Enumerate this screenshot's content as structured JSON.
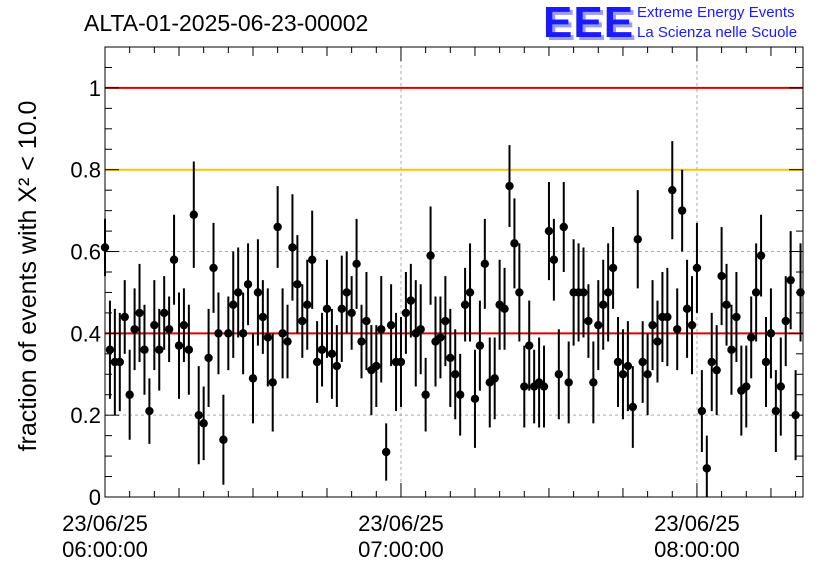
{
  "title": "ALTA-01-2025-06-23-00002",
  "logo": {
    "mark": "EEE",
    "line1": "Extreme Energy Events",
    "line2": "La Scienza nelle Scuole"
  },
  "chart_data": {
    "type": "scatter",
    "title": "ALTA-01-2025-06-23-00002",
    "ylabel": "fraction of events with X² < 10.0",
    "xlabel": "",
    "ylim": [
      0,
      1.1
    ],
    "xlim": [
      "23/06/25 06:00:00",
      "23/06/25 08:21:30"
    ],
    "grid": true,
    "y_ticks": [
      "0",
      "0.2",
      "0.4",
      "0.6",
      "0.8",
      "1"
    ],
    "x_ticks": [
      {
        "value": 0,
        "line1": "23/06/25",
        "line2": "06:00:00"
      },
      {
        "value": 60,
        "line1": "23/06/25",
        "line2": "07:00:00"
      },
      {
        "value": 120,
        "line1": "23/06/25",
        "line2": "08:00:00"
      }
    ],
    "reference_lines": [
      {
        "y": 1.0,
        "color": "#e00000"
      },
      {
        "y": 0.8,
        "color": "#ffc000"
      },
      {
        "y": 0.4,
        "color": "#e00000"
      }
    ],
    "series": [
      {
        "x": [
          0,
          1.0,
          2.0,
          3.0,
          4.0,
          5.0,
          6.0,
          7.0,
          8.0,
          9.0,
          10.0,
          11.0,
          12.0,
          13.0,
          14.0,
          15.0,
          16.0,
          17.0,
          18.0,
          19.0,
          20.0,
          21.0,
          22.0,
          23.0,
          24.0,
          25.0,
          26.0,
          27.0,
          28.0,
          29.0,
          30.0,
          31.0,
          32.0,
          33.0,
          34.0,
          35.0,
          36.0,
          37.0,
          38.0,
          39.0,
          40.0,
          41.0,
          42.0,
          43.0,
          44.0,
          45.0,
          46.0,
          47.0,
          48.0,
          49.0,
          50.0,
          51.0,
          52.0,
          53.0,
          54.0,
          55.0,
          56.0,
          57.0,
          58.0,
          59.0,
          60.0,
          61.0,
          62.0,
          63.0,
          64.0,
          65.0,
          66.0,
          67.0,
          68.0,
          69.0,
          70.0,
          71.0,
          72.0,
          73.0,
          74.0,
          75.0,
          76.0,
          77.0,
          78.0,
          79.0,
          80.0,
          81.0,
          82.0,
          83.0,
          84.0,
          85.0,
          86.0,
          87.0,
          88.0,
          89.0,
          90.0,
          91.0,
          92.0,
          93.0,
          94.0,
          95.0,
          96.0,
          97.0,
          98.0,
          99.0,
          100.0,
          101.0,
          102.0,
          103.0,
          104.0,
          105.0,
          106.0,
          107.0,
          108.0,
          109.0,
          110.0,
          111.0,
          112.0,
          113.0,
          114.0,
          115.0,
          116.0,
          117.0,
          118.0,
          119.0,
          120.0,
          121.0,
          122.0,
          123.0,
          124.0,
          125.0,
          126.0,
          127.0,
          128.0,
          129.0,
          130.0,
          131.0,
          132.0,
          133.0,
          134.0,
          135.0,
          136.0,
          137.0,
          138.0,
          139.0,
          140.0,
          141.0
        ],
        "y": [
          0.61,
          0.36,
          0.33,
          0.33,
          0.44,
          0.25,
          0.41,
          0.45,
          0.36,
          0.21,
          0.42,
          0.36,
          0.45,
          0.41,
          0.58,
          0.37,
          0.42,
          0.36,
          0.69,
          0.2,
          0.18,
          0.34,
          0.56,
          0.4,
          0.14,
          0.4,
          0.47,
          0.5,
          0.4,
          0.52,
          0.29,
          0.5,
          0.44,
          0.39,
          0.28,
          0.66,
          0.4,
          0.38,
          0.61,
          0.52,
          0.43,
          0.47,
          0.58,
          0.33,
          0.36,
          0.46,
          0.35,
          0.32,
          0.46,
          0.5,
          0.45,
          0.57,
          0.38,
          0.43,
          0.31,
          0.32,
          0.41,
          0.11,
          0.42,
          0.33,
          0.33,
          0.45,
          0.48,
          0.4,
          0.41,
          0.25,
          0.59,
          0.38,
          0.39,
          0.43,
          0.34,
          0.3,
          0.25,
          0.47,
          0.5,
          0.24,
          0.37,
          0.57,
          0.28,
          0.29,
          0.47,
          0.46,
          0.76,
          0.62,
          0.5,
          0.27,
          0.37,
          0.27,
          0.28,
          0.27,
          0.65,
          0.58,
          0.3,
          0.66,
          0.28,
          0.5,
          0.5,
          0.5,
          0.43,
          0.28,
          0.42,
          0.47,
          0.5,
          0.56,
          0.33,
          0.3,
          0.32,
          0.22,
          0.63,
          0.33,
          0.3,
          0.42,
          0.38,
          0.44,
          0.44,
          0.75,
          0.41,
          0.7,
          0.46,
          0.42,
          0.56,
          0.21,
          0.07,
          0.33,
          0.31,
          0.54,
          0.47,
          0.36,
          0.44,
          0.26,
          0.27,
          0.39,
          0.5,
          0.59,
          0.33,
          0.4,
          0.21,
          0.27,
          0.43,
          0.53,
          0.2,
          0.5
        ],
        "err": [
          0.07,
          0.12,
          0.13,
          0.12,
          0.09,
          0.11,
          0.1,
          0.12,
          0.11,
          0.08,
          0.11,
          0.1,
          0.09,
          0.08,
          0.11,
          0.13,
          0.09,
          0.11,
          0.13,
          0.12,
          0.09,
          0.12,
          0.11,
          0.1,
          0.11,
          0.09,
          0.13,
          0.11,
          0.1,
          0.1,
          0.11,
          0.13,
          0.09,
          0.12,
          0.12,
          0.1,
          0.11,
          0.09,
          0.13,
          0.12,
          0.09,
          0.11,
          0.12,
          0.1,
          0.09,
          0.12,
          0.11,
          0.1,
          0.13,
          0.1,
          0.09,
          0.11,
          0.09,
          0.12,
          0.11,
          0.1,
          0.13,
          0.07,
          0.1,
          0.12,
          0.11,
          0.1,
          0.09,
          0.13,
          0.11,
          0.09,
          0.12,
          0.11,
          0.1,
          0.11,
          0.12,
          0.11,
          0.1,
          0.09,
          0.12,
          0.12,
          0.11,
          0.11,
          0.11,
          0.1,
          0.11,
          0.1,
          0.1,
          0.11,
          0.12,
          0.1,
          0.11,
          0.09,
          0.11,
          0.1,
          0.12,
          0.1,
          0.11,
          0.11,
          0.1,
          0.13,
          0.12,
          0.11,
          0.09,
          0.1,
          0.11,
          0.11,
          0.12,
          0.1,
          0.11,
          0.11,
          0.11,
          0.1,
          0.12,
          0.1,
          0.1,
          0.11,
          0.1,
          0.11,
          0.12,
          0.12,
          0.1,
          0.1,
          0.12,
          0.12,
          0.11,
          0.1,
          0.08,
          0.12,
          0.11,
          0.12,
          0.1,
          0.11,
          0.11,
          0.11,
          0.1,
          0.1,
          0.12,
          0.1,
          0.11,
          0.11,
          0.1,
          0.12,
          0.11,
          0.12,
          0.11,
          0.12
        ]
      }
    ]
  }
}
